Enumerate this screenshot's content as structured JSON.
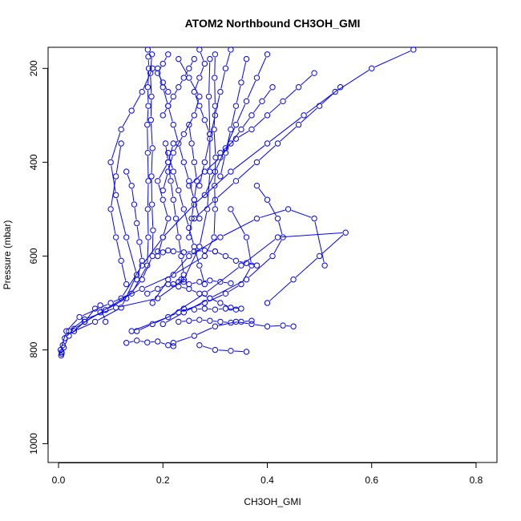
{
  "chart_data": {
    "type": "line",
    "title": "ATOM2 Northbound CH3OH_GMI",
    "xlabel": "CH3OH_GMI",
    "ylabel": "Pressure (mbar)",
    "xlim": [
      -0.02,
      0.84
    ],
    "ylim": [
      1040,
      155
    ],
    "y_axis_reversed": true,
    "xticks": [
      0.0,
      0.2,
      0.4,
      0.6,
      0.8
    ],
    "xtick_labels": [
      "0.0",
      "0.2",
      "0.4",
      "0.6",
      "0.8"
    ],
    "yticks": [
      200,
      400,
      600,
      800,
      1000
    ],
    "ytick_labels": [
      "200",
      "400",
      "600",
      "800",
      "1000"
    ],
    "grid": false,
    "marker": "open-circle",
    "color": "#0000ff",
    "series": [
      {
        "x": [
          0.005,
          0.006,
          0.008,
          0.012,
          0.03,
          0.08,
          0.14,
          0.17,
          0.172,
          0.171,
          0.172,
          0.171,
          0.17,
          0.172,
          0.171,
          0.173,
          0.172,
          0.171
        ],
        "y": [
          812,
          805,
          790,
          775,
          755,
          720,
          680,
          620,
          560,
          500,
          440,
          380,
          320,
          280,
          240,
          200,
          175,
          160
        ]
      },
      {
        "x": [
          0.006,
          0.01,
          0.02,
          0.05,
          0.09,
          0.13,
          0.16,
          0.18,
          0.181,
          0.179,
          0.178,
          0.18,
          0.177,
          0.178,
          0.176,
          0.179
        ],
        "y": [
          808,
          795,
          770,
          740,
          715,
          690,
          650,
          600,
          545,
          490,
          430,
          370,
          310,
          260,
          210,
          170
        ]
      },
      {
        "x": [
          0.004,
          0.015,
          0.04,
          0.1,
          0.16,
          0.22,
          0.28,
          0.298,
          0.3,
          0.299,
          0.301,
          0.298,
          0.3,
          0.299,
          0.3
        ],
        "y": [
          800,
          760,
          730,
          700,
          670,
          640,
          600,
          560,
          500,
          450,
          390,
          330,
          280,
          220,
          170
        ]
      },
      {
        "x": [
          0.02,
          0.05,
          0.11,
          0.19,
          0.24,
          0.27,
          0.285,
          0.29,
          0.29,
          0.288,
          0.29
        ],
        "y": [
          760,
          735,
          710,
          690,
          650,
          580,
          500,
          420,
          340,
          260,
          180
        ]
      },
      {
        "x": [
          0.03,
          0.07,
          0.12,
          0.15,
          0.13,
          0.11,
          0.1,
          0.12,
          0.14,
          0.16,
          0.18
        ],
        "y": [
          760,
          740,
          710,
          640,
          560,
          470,
          400,
          330,
          290,
          250,
          200
        ]
      },
      {
        "x": [
          0.12,
          0.16,
          0.2,
          0.26,
          0.33,
          0.4,
          0.47,
          0.53,
          0.6,
          0.68
        ],
        "y": [
          690,
          620,
          560,
          490,
          420,
          360,
          300,
          250,
          200,
          160
        ]
      },
      {
        "x": [
          0.14,
          0.21,
          0.28,
          0.35,
          0.42,
          0.55,
          0.5,
          0.45,
          0.4
        ],
        "y": [
          760,
          730,
          680,
          620,
          560,
          550,
          600,
          650,
          700
        ]
      },
      {
        "x": [
          0.18,
          0.21,
          0.25,
          0.31,
          0.38,
          0.44,
          0.49,
          0.51
        ],
        "y": [
          700,
          650,
          600,
          560,
          520,
          500,
          520,
          620
        ]
      },
      {
        "x": [
          0.2,
          0.24,
          0.29,
          0.36,
          0.41,
          0.43,
          0.42,
          0.4,
          0.38
        ],
        "y": [
          745,
          720,
          690,
          650,
          600,
          560,
          520,
          480,
          450
        ]
      },
      {
        "x": [
          0.15,
          0.18,
          0.23,
          0.28,
          0.32,
          0.35,
          0.37,
          0.36,
          0.33
        ],
        "y": [
          760,
          745,
          720,
          700,
          680,
          660,
          620,
          560,
          500
        ]
      },
      {
        "x": [
          0.22,
          0.26,
          0.3,
          0.34,
          0.37,
          0.4,
          0.43,
          0.45
        ],
        "y": [
          785,
          770,
          750,
          740,
          745,
          750,
          748,
          750
        ]
      },
      {
        "x": [
          0.27,
          0.3,
          0.33,
          0.36
        ],
        "y": [
          790,
          800,
          802,
          804
        ]
      },
      {
        "x": [
          0.13,
          0.15,
          0.17,
          0.19,
          0.21,
          0.22
        ],
        "y": [
          785,
          780,
          784,
          782,
          790,
          792
        ]
      },
      {
        "x": [
          0.23,
          0.25,
          0.27,
          0.29,
          0.31,
          0.33,
          0.35,
          0.37
        ],
        "y": [
          740,
          738,
          736,
          738,
          740,
          742,
          740,
          738
        ]
      },
      {
        "x": [
          0.24,
          0.26,
          0.28,
          0.3,
          0.32,
          0.34
        ],
        "y": [
          712,
          714,
          712,
          714,
          712,
          714
        ]
      },
      {
        "x": [
          0.22,
          0.23,
          0.235,
          0.24,
          0.25,
          0.27,
          0.29,
          0.31,
          0.33
        ],
        "y": [
          660,
          655,
          650,
          655,
          660,
          655,
          652,
          655,
          658
        ]
      },
      {
        "x": [
          0.19,
          0.2,
          0.21,
          0.22,
          0.24,
          0.26,
          0.28,
          0.3
        ],
        "y": [
          590,
          592,
          588,
          590,
          592,
          590,
          588,
          590
        ]
      },
      {
        "x": [
          0.21,
          0.22,
          0.23,
          0.24,
          0.25,
          0.26,
          0.27,
          0.28
        ],
        "y": [
          380,
          420,
          460,
          500,
          540,
          580,
          620,
          660
        ]
      },
      {
        "x": [
          0.19,
          0.2,
          0.21,
          0.22,
          0.23,
          0.24,
          0.25,
          0.26,
          0.27
        ],
        "y": [
          200,
          240,
          280,
          320,
          360,
          400,
          440,
          480,
          520
        ]
      },
      {
        "x": [
          0.23,
          0.25,
          0.27,
          0.26,
          0.24,
          0.22,
          0.21,
          0.2
        ],
        "y": [
          180,
          220,
          260,
          300,
          340,
          380,
          420,
          460
        ]
      },
      {
        "x": [
          0.25,
          0.28,
          0.31,
          0.33,
          0.35,
          0.37,
          0.39,
          0.41
        ],
        "y": [
          450,
          420,
          390,
          360,
          330,
          300,
          270,
          240
        ]
      },
      {
        "x": [
          0.31,
          0.34,
          0.37,
          0.4,
          0.43,
          0.46,
          0.49
        ],
        "y": [
          380,
          350,
          330,
          300,
          270,
          240,
          210
        ]
      },
      {
        "x": [
          0.26,
          0.3,
          0.34,
          0.38,
          0.42,
          0.46,
          0.5,
          0.54
        ],
        "y": [
          520,
          480,
          440,
          400,
          360,
          320,
          280,
          240
        ]
      },
      {
        "x": [
          0.33,
          0.32,
          0.31,
          0.3,
          0.29,
          0.28,
          0.27
        ],
        "y": [
          160,
          200,
          250,
          300,
          350,
          400,
          450
        ]
      },
      {
        "x": [
          0.36,
          0.35,
          0.34,
          0.33,
          0.32,
          0.31
        ],
        "y": [
          180,
          230,
          280,
          330,
          380,
          430
        ]
      },
      {
        "x": [
          0.4,
          0.38,
          0.36,
          0.34,
          0.32,
          0.3,
          0.28
        ],
        "y": [
          170,
          220,
          270,
          320,
          370,
          420,
          470
        ]
      },
      {
        "x": [
          0.19,
          0.2,
          0.21,
          0.2,
          0.19,
          0.21,
          0.22
        ],
        "y": [
          600,
          560,
          520,
          480,
          440,
          400,
          360
        ]
      },
      {
        "x": [
          0.24,
          0.235,
          0.23,
          0.225,
          0.22,
          0.215,
          0.21,
          0.205
        ],
        "y": [
          640,
          600,
          560,
          520,
          480,
          440,
          400,
          360
        ]
      },
      {
        "x": [
          0.25,
          0.255,
          0.26,
          0.265,
          0.26,
          0.255,
          0.25
        ],
        "y": [
          560,
          520,
          480,
          440,
          400,
          360,
          320
        ]
      },
      {
        "x": [
          0.2,
          0.21,
          0.22,
          0.23,
          0.24,
          0.25,
          0.26
        ],
        "y": [
          300,
          280,
          260,
          240,
          220,
          200,
          180
        ]
      },
      {
        "x": [
          0.27,
          0.28,
          0.27,
          0.26,
          0.27,
          0.28,
          0.29
        ],
        "y": [
          160,
          190,
          220,
          250,
          280,
          310,
          340
        ]
      },
      {
        "x": [
          0.15,
          0.16,
          0.155,
          0.15,
          0.145,
          0.14,
          0.13
        ],
        "y": [
          650,
          610,
          570,
          530,
          490,
          450,
          420
        ]
      },
      {
        "x": [
          0.13,
          0.12,
          0.11,
          0.1,
          0.11,
          0.12
        ],
        "y": [
          660,
          610,
          560,
          500,
          430,
          360
        ]
      },
      {
        "x": [
          0.17,
          0.19,
          0.21,
          0.23,
          0.25,
          0.27,
          0.29,
          0.31,
          0.33,
          0.35
        ],
        "y": [
          680,
          670,
          660,
          665,
          670,
          680,
          690,
          700,
          710,
          712
        ]
      },
      {
        "x": [
          0.05,
          0.07,
          0.08,
          0.09
        ],
        "y": [
          740,
          712,
          705,
          740
        ]
      },
      {
        "x": [
          0.21,
          0.2,
          0.19,
          0.2,
          0.21
        ],
        "y": [
          250,
          230,
          210,
          190,
          170
        ]
      },
      {
        "x": [
          0.3,
          0.32,
          0.34,
          0.36,
          0.38
        ],
        "y": [
          590,
          600,
          610,
          615,
          620
        ]
      }
    ]
  }
}
